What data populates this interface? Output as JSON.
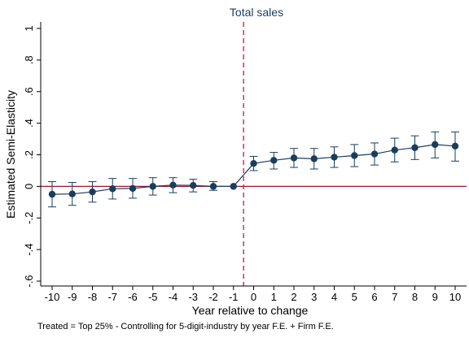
{
  "chart_data": {
    "type": "scatter",
    "title": "Total sales",
    "xlabel": "Year relative to change",
    "ylabel": "Estimated Semi-Elasticity",
    "note": "Treated = Top 25% - Controlling for 5-digit-industry by year F.E. + Firm  F.E.",
    "xlim": [
      -10,
      10
    ],
    "ylim": [
      -0.6,
      1
    ],
    "x_ticks": [
      -10,
      -9,
      -8,
      -7,
      -6,
      -5,
      -4,
      -3,
      -2,
      -1,
      0,
      1,
      2,
      3,
      4,
      5,
      6,
      7,
      8,
      9,
      10
    ],
    "y_ticks": [
      {
        "value": -0.6,
        "label": "-.6"
      },
      {
        "value": -0.4,
        "label": "-.4"
      },
      {
        "value": -0.2,
        "label": "-.2"
      },
      {
        "value": 0,
        "label": "0"
      },
      {
        "value": 0.2,
        "label": ".2"
      },
      {
        "value": 0.4,
        "label": ".4"
      },
      {
        "value": 0.6,
        "label": ".6"
      },
      {
        "value": 0.8,
        "label": ".8"
      },
      {
        "value": 1,
        "label": "1"
      }
    ],
    "reference_lines": {
      "horizontal_y": 0,
      "vertical_x": -0.5
    },
    "grid": false,
    "series": [
      {
        "x": [
          -10,
          -9,
          -8,
          -7,
          -6,
          -5,
          -4,
          -3,
          -2,
          -1,
          0,
          1,
          2,
          3,
          4,
          5,
          6,
          7,
          8,
          9,
          10
        ],
        "values": [
          -0.05,
          -0.048,
          -0.035,
          -0.015,
          -0.013,
          0.0,
          0.008,
          0.006,
          0.0,
          0.0,
          0.145,
          0.165,
          0.18,
          0.175,
          0.185,
          0.195,
          0.205,
          0.23,
          0.245,
          0.265,
          0.255
        ],
        "ci_low": [
          -0.13,
          -0.12,
          -0.1,
          -0.08,
          -0.075,
          -0.055,
          -0.04,
          -0.035,
          -0.025,
          0.0,
          0.1,
          0.11,
          0.12,
          0.11,
          0.12,
          0.125,
          0.135,
          0.155,
          0.17,
          0.18,
          0.16
        ],
        "ci_high": [
          0.03,
          0.025,
          0.03,
          0.05,
          0.05,
          0.055,
          0.055,
          0.045,
          0.03,
          0.0,
          0.19,
          0.215,
          0.24,
          0.24,
          0.25,
          0.265,
          0.275,
          0.305,
          0.32,
          0.345,
          0.345
        ]
      }
    ],
    "colors": {
      "marker": "#1a3d5c",
      "line": "#1a3d5c",
      "zero_line": "#a01830",
      "event_line": "#c0184a",
      "title": "#1f3f66"
    }
  }
}
